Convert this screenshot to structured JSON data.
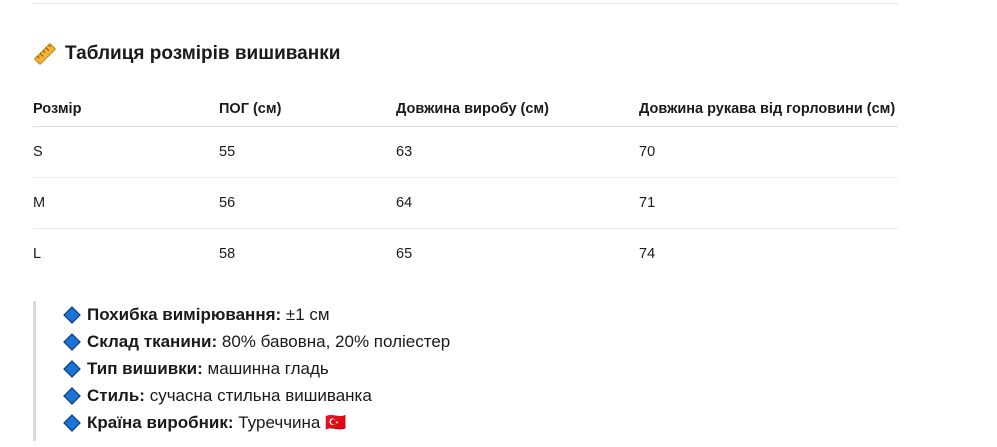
{
  "title": "Таблиця розмірів вишиванки",
  "title_icon": "ruler-icon",
  "table": {
    "headers": [
      "Розмір",
      "ПОГ (см)",
      "Довжина виробу (см)",
      "Довжина рукава від горловини (см)"
    ],
    "rows": [
      [
        "S",
        "55",
        "63",
        "70"
      ],
      [
        "M",
        "56",
        "64",
        "71"
      ],
      [
        "L",
        "58",
        "65",
        "74"
      ]
    ]
  },
  "specs": [
    {
      "label": "Похибка вимірювання:",
      "value": "±1 см"
    },
    {
      "label": "Склад тканини:",
      "value": "80% бавовна, 20% поліестер"
    },
    {
      "label": "Тип вишивки:",
      "value": "машинна гладь"
    },
    {
      "label": "Стиль:",
      "value": "сучасна стильна вишиванка"
    },
    {
      "label": "Країна виробник:",
      "value": "Туреччина 🇹🇷"
    }
  ],
  "colors": {
    "diamond": "#1a73d9",
    "diamond_border": "#0b3a75",
    "rule": "#e3e3e3"
  }
}
